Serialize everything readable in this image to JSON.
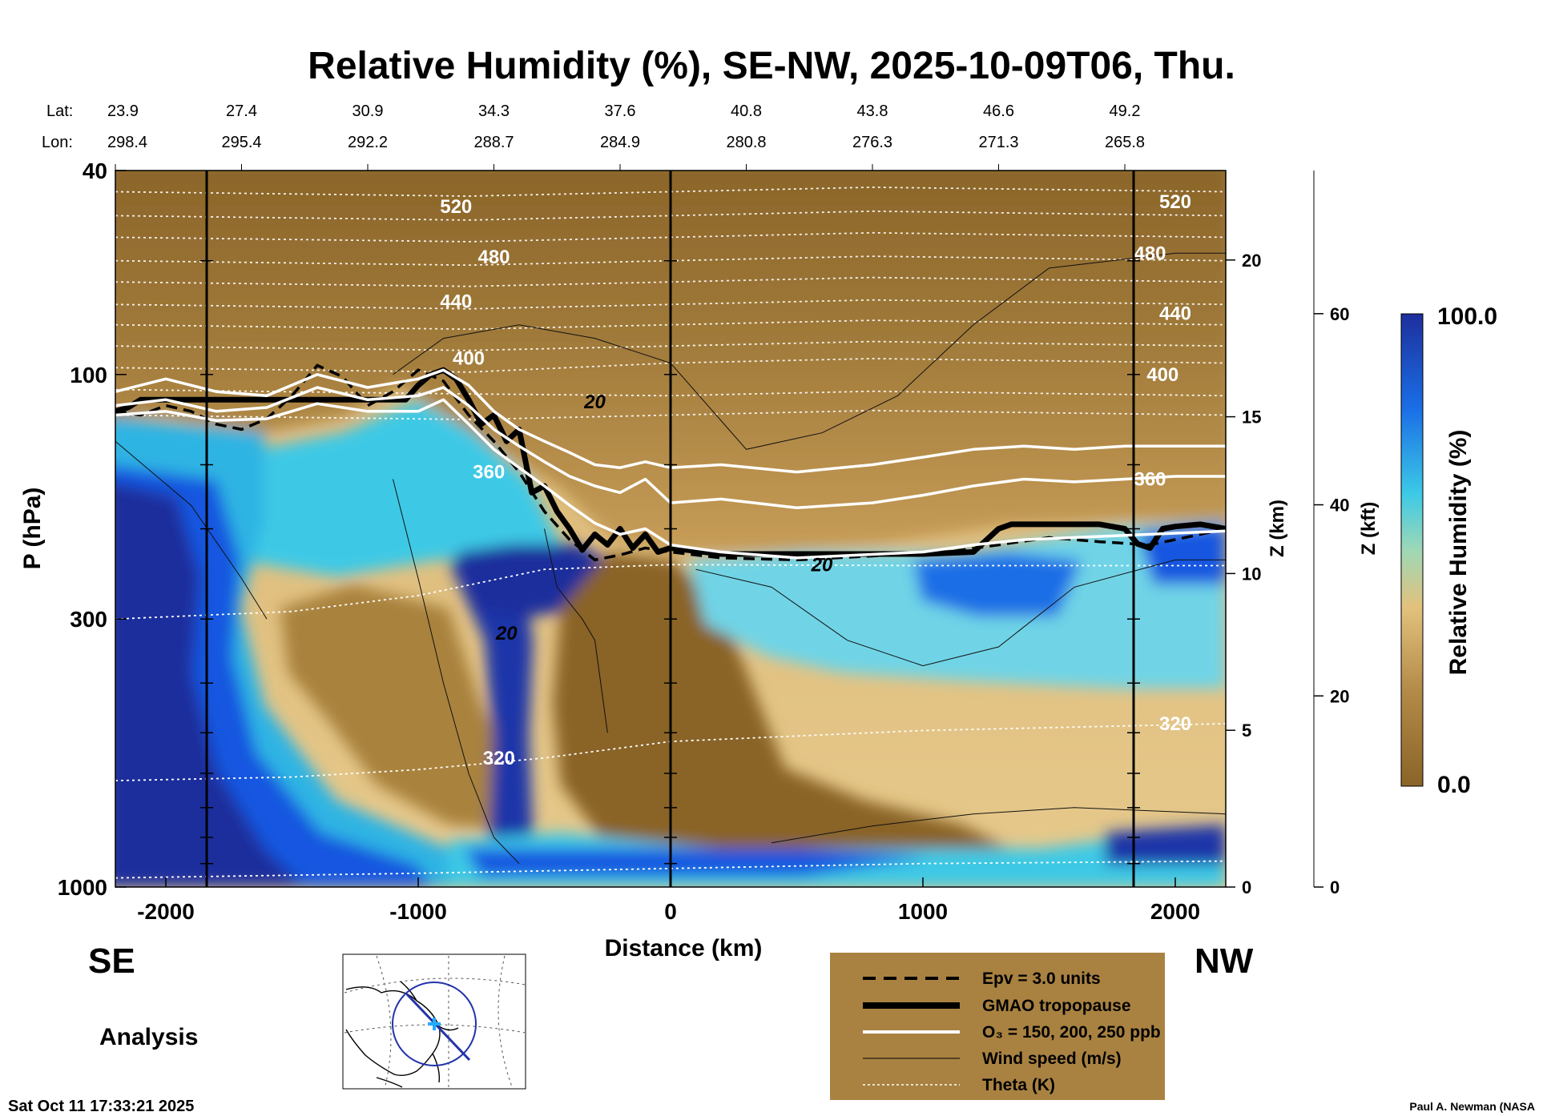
{
  "chart_data": {
    "type": "heatmap",
    "title": "Relative Humidity (%), SE-NW, 2025-10-09T06, Thu.",
    "xlabel": "Distance (km)",
    "ylabel": "P (hPa)",
    "xlim": [
      -2200,
      2200
    ],
    "ylim": [
      1000,
      40
    ],
    "y_scale": "log",
    "x_ticks": [
      -2000,
      -1000,
      0,
      1000,
      2000
    ],
    "y_ticks": [
      40,
      100,
      300,
      1000
    ],
    "z_km_ticks": [
      0,
      5,
      10,
      15,
      20
    ],
    "z_km_label": "Z (km)",
    "z_kft_ticks": [
      0,
      20,
      40,
      60
    ],
    "z_kft_label": "Z (kft)",
    "colorbar": {
      "label": "Relative Humidity (%)",
      "min": 0.0,
      "max": 100.0,
      "min_label": "0.0",
      "max_label": "100.0"
    },
    "lat_label": "Lat:",
    "lon_label": "Lon:",
    "latlon_ticks": [
      {
        "x": -2200,
        "lat": "23.9",
        "lon": "298.4"
      },
      {
        "x": -1700,
        "lat": "27.4",
        "lon": "295.4"
      },
      {
        "x": -1200,
        "lat": "30.9",
        "lon": "292.2"
      },
      {
        "x": -700,
        "lat": "34.3",
        "lon": "288.7"
      },
      {
        "x": -200,
        "lat": "37.6",
        "lon": "284.9"
      },
      {
        "x": 300,
        "lat": "40.8",
        "lon": "280.8"
      },
      {
        "x": 800,
        "lat": "43.8",
        "lon": "276.3"
      },
      {
        "x": 1300,
        "lat": "46.6",
        "lon": "271.3"
      },
      {
        "x": 1800,
        "lat": "49.2",
        "lon": "265.8"
      }
    ],
    "theta_labels": [
      {
        "text": "520",
        "x": -850,
        "p": 47
      },
      {
        "text": "480",
        "x": -700,
        "p": 59
      },
      {
        "text": "440",
        "x": -850,
        "p": 72
      },
      {
        "text": "400",
        "x": -800,
        "p": 93
      },
      {
        "text": "360",
        "x": -720,
        "p": 155
      },
      {
        "text": "320",
        "x": -680,
        "p": 560
      },
      {
        "text": "520",
        "x": 2000,
        "p": 46
      },
      {
        "text": "480",
        "x": 1900,
        "p": 58
      },
      {
        "text": "440",
        "x": 2000,
        "p": 76
      },
      {
        "text": "400",
        "x": 1950,
        "p": 100
      },
      {
        "text": "360",
        "x": 1900,
        "p": 160
      },
      {
        "text": "320",
        "x": 2000,
        "p": 480
      }
    ],
    "wind_labels": [
      {
        "text": "20",
        "x": -300,
        "p": 113
      },
      {
        "text": "20",
        "x": -650,
        "p": 320
      },
      {
        "text": "20",
        "x": 600,
        "p": 235
      }
    ],
    "series": [
      {
        "name": "Epv = 3.0 units",
        "style": "dashed",
        "x": [
          -2200,
          -2100,
          -2000,
          -1900,
          -1800,
          -1700,
          -1600,
          -1500,
          -1400,
          -1300,
          -1200,
          -1100,
          -1000,
          -900,
          -800,
          -700,
          -600,
          -500,
          -400,
          -300,
          -200,
          -100,
          0,
          200,
          500,
          800,
          1100,
          1300,
          1500,
          1700,
          1900,
          2100,
          2200
        ],
        "p": [
          118,
          120,
          115,
          118,
          125,
          128,
          122,
          110,
          96,
          101,
          115,
          108,
          98,
          103,
          120,
          135,
          155,
          185,
          210,
          230,
          225,
          218,
          222,
          228,
          230,
          226,
          222,
          215,
          208,
          212,
          215,
          205,
          200
        ]
      },
      {
        "name": "GMAO tropopause",
        "style": "thick",
        "x": [
          -2200,
          -2150,
          -2100,
          -2000,
          -1800,
          -1600,
          -1400,
          -1200,
          -1050,
          -1000,
          -950,
          -900,
          -850,
          -800,
          -750,
          -700,
          -650,
          -600,
          -550,
          -500,
          -450,
          -400,
          -350,
          -300,
          -250,
          -200,
          -150,
          -100,
          -50,
          0,
          200,
          500,
          800,
          1000,
          1200,
          1300,
          1350,
          1500,
          1700,
          1800,
          1850,
          1900,
          1950,
          2000,
          2100,
          2150,
          2200
        ],
        "p": [
          118,
          116,
          112,
          112,
          112,
          112,
          112,
          112,
          112,
          105,
          100,
          98,
          102,
          112,
          125,
          120,
          135,
          128,
          170,
          165,
          185,
          200,
          220,
          205,
          215,
          200,
          218,
          205,
          222,
          218,
          224,
          224,
          224,
          224,
          222,
          200,
          196,
          196,
          196,
          200,
          214,
          218,
          200,
          198,
          196,
          198,
          200
        ]
      },
      {
        "name": "O₃ = 150, 200, 250 ppb",
        "style": "white",
        "x": [
          -2200,
          -2000,
          -1800,
          -1600,
          -1400,
          -1200,
          -1000,
          -900,
          -800,
          -700,
          -600,
          -500,
          -400,
          -300,
          -200,
          -100,
          0,
          200,
          500,
          800,
          1000,
          1200,
          1400,
          1600,
          1800,
          2000,
          2200
        ],
        "p": [
          108,
          102,
          108,
          110,
          100,
          106,
          102,
          98,
          105,
          118,
          128,
          135,
          142,
          150,
          152,
          148,
          152,
          150,
          155,
          150,
          145,
          140,
          138,
          140,
          138,
          138,
          138
        ]
      },
      {
        "name": "O₃ = 150, 200, 250 ppb",
        "style": "white",
        "x": [
          -2200,
          -2000,
          -1800,
          -1600,
          -1400,
          -1200,
          -1000,
          -900,
          -800,
          -700,
          -600,
          -500,
          -400,
          -300,
          -200,
          -100,
          0,
          200,
          500,
          800,
          1000,
          1200,
          1400,
          1600,
          1800,
          2000,
          2200
        ],
        "p": [
          115,
          112,
          118,
          116,
          106,
          112,
          110,
          106,
          115,
          128,
          138,
          148,
          158,
          165,
          170,
          160,
          178,
          175,
          182,
          178,
          172,
          165,
          160,
          162,
          160,
          158,
          158
        ]
      },
      {
        "name": "O₃ = 150, 200, 250 ppb",
        "style": "white",
        "x": [
          -2200,
          -2000,
          -1800,
          -1600,
          -1400,
          -1200,
          -1000,
          -900,
          -800,
          -700,
          -600,
          -500,
          -400,
          -300,
          -200,
          -100,
          0,
          200,
          500,
          1000,
          1200,
          1400,
          1600,
          1800,
          2000,
          2200
        ],
        "p": [
          120,
          118,
          123,
          122,
          114,
          118,
          118,
          112,
          125,
          140,
          152,
          165,
          180,
          195,
          205,
          200,
          215,
          222,
          228,
          222,
          215,
          210,
          208,
          206,
          204,
          202
        ]
      }
    ],
    "legend": {
      "placement": "bottom-center",
      "entries": [
        "Epv = 3.0 units",
        "GMAO tropopause",
        "O₃ = 150, 200, 250 ppb",
        "Wind speed (m/s)",
        "Theta (K)"
      ]
    },
    "colors": {
      "brown_dark": "#8a6428",
      "brown_mid": "#a98241",
      "tan": "#d9b470",
      "cyan": "#3cc9e6",
      "blue": "#1457e0",
      "navy": "#1d2f9c",
      "legend_bg": "#a98241"
    }
  },
  "labels": {
    "se": "SE",
    "nw": "NW",
    "analysis": "Analysis",
    "timestamp": "Sat Oct 11 17:33:21 2025",
    "credit": "Paul A. Newman (NASA"
  }
}
